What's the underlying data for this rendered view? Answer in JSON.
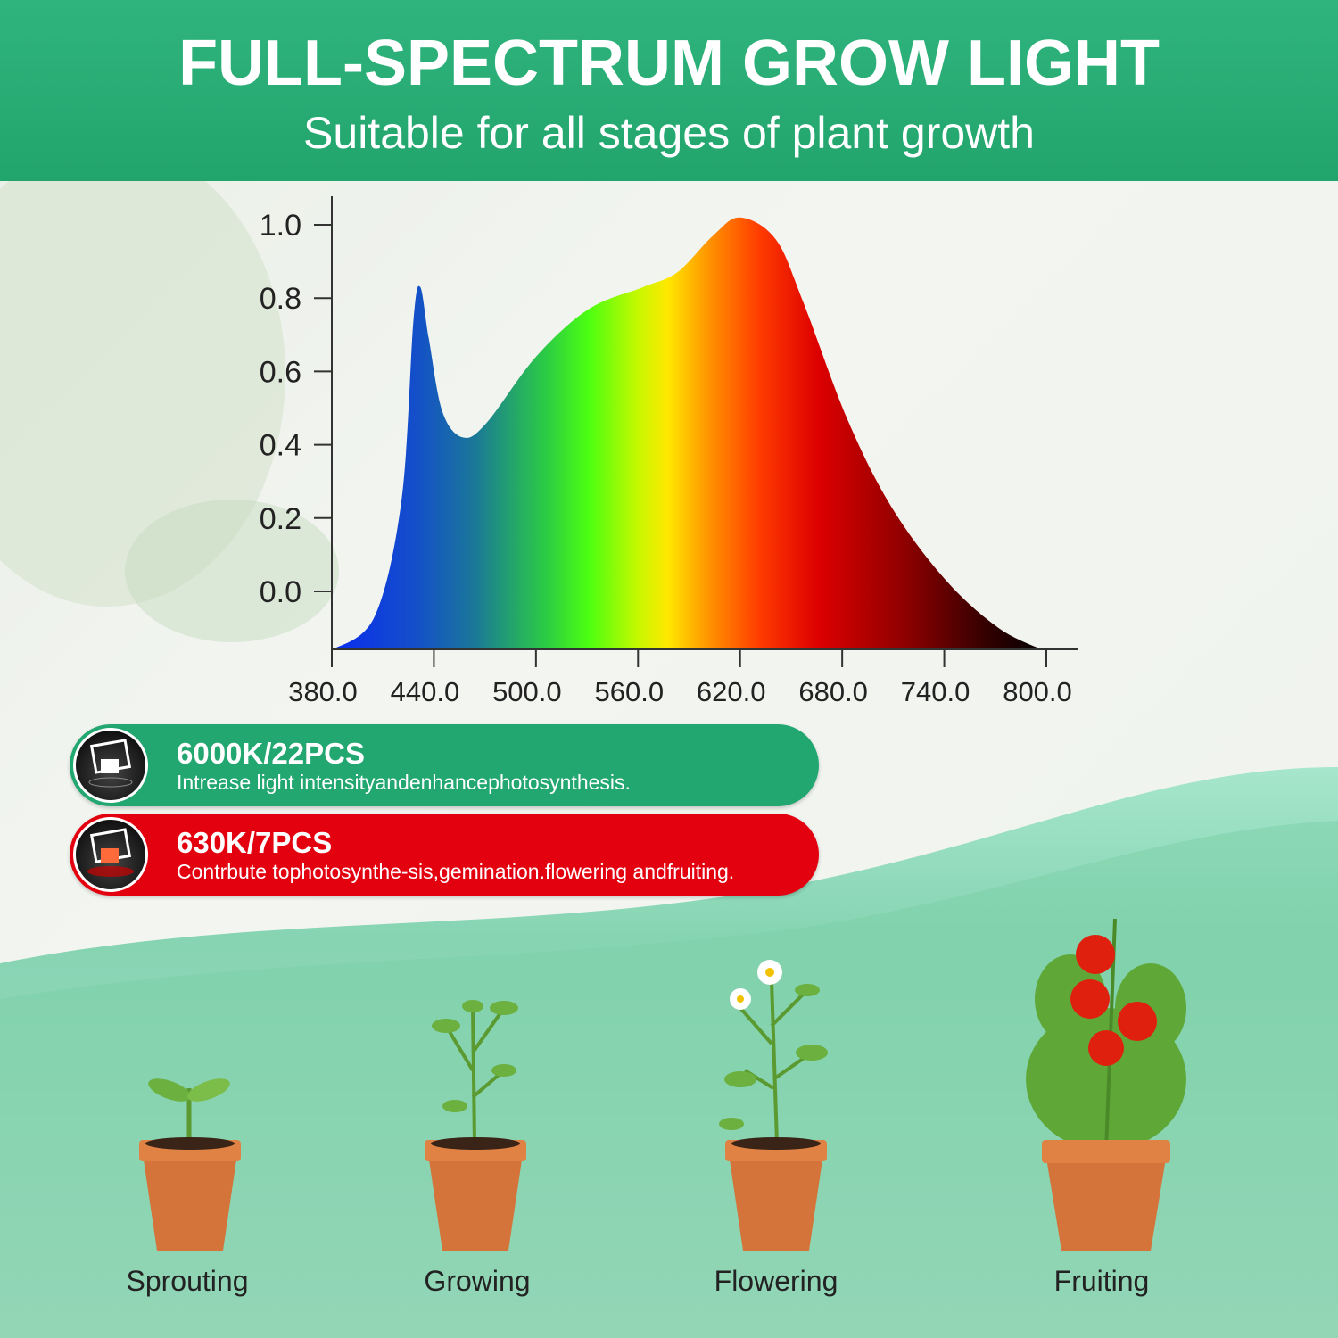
{
  "header": {
    "title": "FULL-SPECTRUM GROW LIGHT",
    "subtitle": "Suitable for all stages of plant growth"
  },
  "chart_data": {
    "type": "area",
    "title": "",
    "xlabel": "",
    "ylabel": "",
    "x_ticks": [
      "380.0",
      "440.0",
      "500.0",
      "560.0",
      "620.0",
      "680.0",
      "740.0",
      "800.0"
    ],
    "y_ticks": [
      "0.0",
      "0.2",
      "0.4",
      "0.6",
      "0.8",
      "1.0"
    ],
    "xlim": [
      380,
      800
    ],
    "ylim": [
      0,
      1.0
    ],
    "grid": false,
    "fill": "visible-spectrum gradient",
    "x": [
      380,
      405,
      421,
      428,
      432,
      437,
      445,
      457,
      471,
      500,
      531,
      563,
      583,
      604,
      620,
      641,
      657,
      683,
      709,
      741,
      772,
      798
    ],
    "y": [
      -0.16,
      -0.07,
      0.25,
      0.74,
      0.83,
      0.69,
      0.49,
      0.42,
      0.46,
      0.64,
      0.77,
      0.83,
      0.87,
      0.97,
      1.02,
      0.96,
      0.79,
      0.47,
      0.23,
      0.03,
      -0.1,
      -0.16
    ]
  },
  "leds": [
    {
      "title": "6000K/22PCS",
      "desc": "Intrease light intensityandenhancephotosynthesis.",
      "color": "#22a771",
      "icon": "white-led-chip-icon"
    },
    {
      "title": "630K/7PCS",
      "desc": "Contrbute tophotosynthe-sis,gemination.flowering andfruiting.",
      "color": "#e3000f",
      "icon": "red-led-chip-icon"
    }
  ],
  "stages": [
    {
      "label": "Sprouting"
    },
    {
      "label": "Growing"
    },
    {
      "label": "Flowering"
    },
    {
      "label": "Fruiting"
    }
  ]
}
